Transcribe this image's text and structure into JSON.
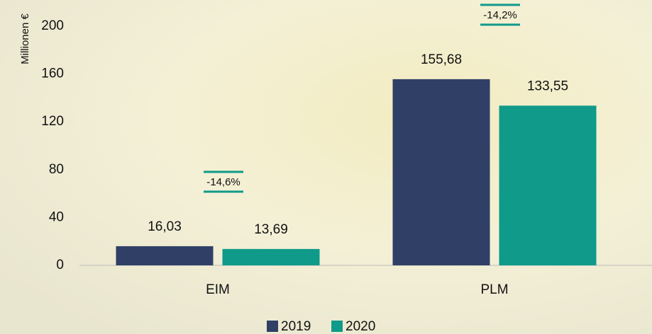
{
  "chart_data": {
    "type": "bar",
    "y_label": "Millionen €",
    "categories": [
      "EIM",
      "PLM"
    ],
    "series": [
      {
        "name": "2019",
        "color": "#2f3f66",
        "values": [
          16.03,
          155.68
        ],
        "value_labels": [
          "16,03",
          "155,68"
        ]
      },
      {
        "name": "2020",
        "color": "#0f9a8a",
        "values": [
          13.69,
          133.55
        ],
        "value_labels": [
          "13,69",
          "133,55"
        ]
      }
    ],
    "annotations": [
      "-14,6%",
      "-14,2%"
    ],
    "annotation_color": "#0f9a8a",
    "ylim": [
      0,
      200
    ],
    "yticks": [
      0,
      40,
      80,
      120,
      160,
      200
    ],
    "grid": false
  }
}
